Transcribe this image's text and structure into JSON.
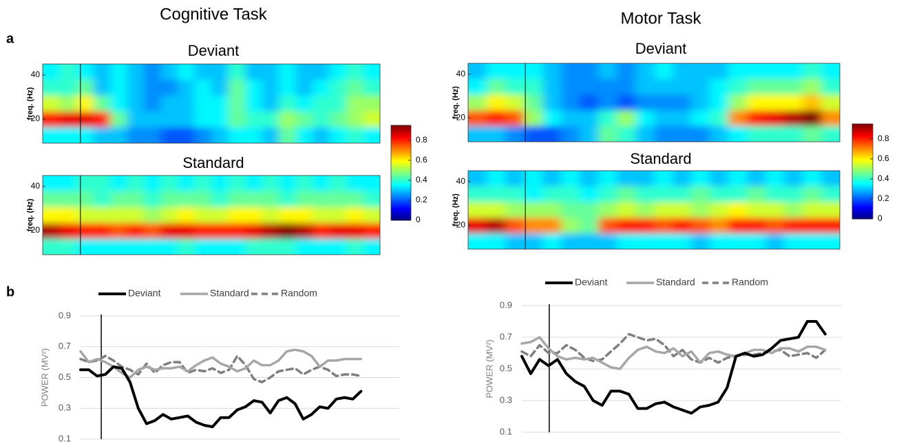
{
  "columns": [
    "Cognitive Task",
    "Motor Task"
  ],
  "panel_labels": [
    "a",
    "b"
  ],
  "chart_data": [
    {
      "type": "heatmap",
      "title": "Deviant",
      "ylabel": "freq. (Hz)",
      "ylim": [
        9,
        45
      ],
      "yticks": [
        20,
        40
      ],
      "colormap": "jet",
      "clim": [
        0,
        0.95
      ],
      "colorbar": true,
      "cticks": [
        0,
        0.2,
        0.4,
        0.6,
        0.8
      ],
      "values": [
        [
          0.35,
          0.4,
          0.35,
          0.3,
          0.35,
          0.3,
          0.25,
          0.3,
          0.35,
          0.3,
          0.3,
          0.4,
          0.3,
          0.3,
          0.35,
          0.3,
          0.3,
          0.35,
          0.4,
          0.35
        ],
        [
          0.4,
          0.4,
          0.45,
          0.3,
          0.35,
          0.3,
          0.25,
          0.25,
          0.3,
          0.35,
          0.3,
          0.45,
          0.35,
          0.3,
          0.35,
          0.3,
          0.35,
          0.4,
          0.45,
          0.4
        ],
        [
          0.55,
          0.5,
          0.6,
          0.45,
          0.35,
          0.3,
          0.25,
          0.3,
          0.3,
          0.35,
          0.35,
          0.45,
          0.35,
          0.3,
          0.4,
          0.35,
          0.4,
          0.4,
          0.5,
          0.5
        ],
        [
          0.8,
          0.85,
          0.85,
          0.8,
          0.45,
          0.3,
          0.3,
          0.3,
          0.3,
          0.35,
          0.35,
          0.45,
          0.4,
          0.4,
          0.5,
          0.45,
          0.4,
          0.45,
          0.5,
          0.55
        ],
        [
          0.35,
          0.35,
          0.35,
          0.3,
          0.3,
          0.25,
          0.25,
          0.2,
          0.2,
          0.25,
          0.3,
          0.35,
          0.35,
          0.3,
          0.45,
          0.35,
          0.3,
          0.35,
          0.4,
          0.35
        ]
      ]
    },
    {
      "type": "heatmap",
      "title": "Standard",
      "ylabel": "freq. (Hz)",
      "ylim": [
        9,
        45
      ],
      "yticks": [
        20,
        40
      ],
      "colormap": "jet",
      "clim": [
        0,
        0.95
      ],
      "values": [
        [
          0.35,
          0.35,
          0.4,
          0.4,
          0.35,
          0.4,
          0.35,
          0.4,
          0.35,
          0.4,
          0.35,
          0.4,
          0.35,
          0.4,
          0.35,
          0.4,
          0.35,
          0.4,
          0.35,
          0.35
        ],
        [
          0.45,
          0.45,
          0.45,
          0.4,
          0.45,
          0.45,
          0.4,
          0.45,
          0.45,
          0.45,
          0.4,
          0.45,
          0.45,
          0.45,
          0.4,
          0.45,
          0.45,
          0.45,
          0.45,
          0.4
        ],
        [
          0.6,
          0.6,
          0.55,
          0.55,
          0.55,
          0.55,
          0.5,
          0.55,
          0.6,
          0.55,
          0.55,
          0.6,
          0.6,
          0.55,
          0.6,
          0.6,
          0.55,
          0.55,
          0.6,
          0.55
        ],
        [
          0.9,
          0.85,
          0.8,
          0.8,
          0.75,
          0.8,
          0.75,
          0.85,
          0.85,
          0.8,
          0.8,
          0.8,
          0.85,
          0.9,
          0.95,
          0.9,
          0.8,
          0.85,
          0.85,
          0.8
        ],
        [
          0.4,
          0.4,
          0.35,
          0.35,
          0.35,
          0.35,
          0.35,
          0.35,
          0.4,
          0.35,
          0.35,
          0.35,
          0.4,
          0.4,
          0.4,
          0.35,
          0.35,
          0.35,
          0.4,
          0.35
        ]
      ]
    },
    {
      "type": "heatmap",
      "title": "Deviant",
      "ylabel": "freq. (Hz)",
      "ylim": [
        9,
        45
      ],
      "yticks": [
        20,
        40
      ],
      "colormap": "jet",
      "clim": [
        0,
        0.95
      ],
      "colorbar": true,
      "cticks": [
        0,
        0.2,
        0.4,
        0.6,
        0.8
      ],
      "values": [
        [
          0.3,
          0.35,
          0.35,
          0.35,
          0.3,
          0.25,
          0.25,
          0.3,
          0.25,
          0.3,
          0.35,
          0.3,
          0.3,
          0.3,
          0.35,
          0.35,
          0.35,
          0.35,
          0.4,
          0.35
        ],
        [
          0.35,
          0.45,
          0.4,
          0.4,
          0.3,
          0.25,
          0.25,
          0.25,
          0.25,
          0.3,
          0.3,
          0.3,
          0.3,
          0.35,
          0.4,
          0.45,
          0.45,
          0.45,
          0.5,
          0.4
        ],
        [
          0.5,
          0.6,
          0.55,
          0.45,
          0.3,
          0.25,
          0.2,
          0.25,
          0.2,
          0.25,
          0.25,
          0.25,
          0.3,
          0.35,
          0.5,
          0.6,
          0.6,
          0.6,
          0.65,
          0.55
        ],
        [
          0.75,
          0.8,
          0.75,
          0.5,
          0.35,
          0.3,
          0.3,
          0.4,
          0.5,
          0.35,
          0.3,
          0.3,
          0.35,
          0.4,
          0.7,
          0.8,
          0.85,
          0.9,
          0.95,
          0.7
        ],
        [
          0.3,
          0.3,
          0.25,
          0.2,
          0.2,
          0.25,
          0.3,
          0.45,
          0.4,
          0.3,
          0.25,
          0.25,
          0.25,
          0.3,
          0.35,
          0.4,
          0.4,
          0.4,
          0.45,
          0.4
        ]
      ]
    },
    {
      "type": "heatmap",
      "title": "Standard",
      "ylabel": "freq. (Hz)",
      "ylim": [
        9,
        45
      ],
      "yticks": [
        20,
        40
      ],
      "colormap": "jet",
      "clim": [
        0,
        0.95
      ],
      "values": [
        [
          0.3,
          0.35,
          0.3,
          0.35,
          0.3,
          0.35,
          0.3,
          0.35,
          0.3,
          0.3,
          0.35,
          0.3,
          0.35,
          0.3,
          0.35,
          0.3,
          0.35,
          0.3,
          0.35,
          0.3
        ],
        [
          0.4,
          0.4,
          0.4,
          0.35,
          0.4,
          0.4,
          0.35,
          0.4,
          0.45,
          0.4,
          0.4,
          0.4,
          0.45,
          0.4,
          0.4,
          0.45,
          0.4,
          0.4,
          0.45,
          0.4
        ],
        [
          0.55,
          0.55,
          0.5,
          0.5,
          0.5,
          0.45,
          0.45,
          0.5,
          0.55,
          0.5,
          0.55,
          0.55,
          0.5,
          0.55,
          0.6,
          0.55,
          0.55,
          0.5,
          0.55,
          0.55
        ],
        [
          0.85,
          0.9,
          0.75,
          0.7,
          0.7,
          0.5,
          0.45,
          0.75,
          0.8,
          0.8,
          0.75,
          0.8,
          0.75,
          0.7,
          0.8,
          0.8,
          0.75,
          0.8,
          0.8,
          0.8
        ],
        [
          0.35,
          0.35,
          0.3,
          0.3,
          0.35,
          0.3,
          0.3,
          0.3,
          0.35,
          0.35,
          0.35,
          0.35,
          0.3,
          0.35,
          0.35,
          0.35,
          0.3,
          0.35,
          0.35,
          0.35
        ]
      ]
    },
    {
      "type": "line",
      "ylabel": "POWER (MV²)",
      "ylim": [
        0.1,
        0.9
      ],
      "yticks": [
        0.1,
        0.3,
        0.5,
        0.7,
        0.9
      ],
      "grid": true,
      "series": [
        {
          "name": "Deviant",
          "color": "#000000",
          "dash": "solid",
          "values": [
            0.55,
            0.55,
            0.51,
            0.52,
            0.57,
            0.56,
            0.47,
            0.3,
            0.2,
            0.22,
            0.26,
            0.23,
            0.24,
            0.25,
            0.21,
            0.19,
            0.18,
            0.24,
            0.24,
            0.29,
            0.31,
            0.35,
            0.34,
            0.27,
            0.35,
            0.37,
            0.33,
            0.23,
            0.26,
            0.31,
            0.3,
            0.36,
            0.37,
            0.36,
            0.41
          ]
        },
        {
          "name": "Standard",
          "color": "#a6a6a6",
          "dash": "solid",
          "values": [
            0.67,
            0.6,
            0.62,
            0.6,
            0.57,
            0.53,
            0.5,
            0.55,
            0.57,
            0.55,
            0.56,
            0.56,
            0.57,
            0.54,
            0.58,
            0.61,
            0.63,
            0.59,
            0.57,
            0.54,
            0.56,
            0.61,
            0.58,
            0.58,
            0.61,
            0.67,
            0.68,
            0.67,
            0.64,
            0.57,
            0.61,
            0.61,
            0.62,
            0.62,
            0.62
          ]
        },
        {
          "name": "Random",
          "color": "#7f7f7f",
          "dash": "dashed",
          "values": [
            0.62,
            0.6,
            0.61,
            0.64,
            0.61,
            0.57,
            0.55,
            0.52,
            0.59,
            0.53,
            0.58,
            0.6,
            0.6,
            0.53,
            0.55,
            0.54,
            0.56,
            0.53,
            0.55,
            0.64,
            0.58,
            0.49,
            0.47,
            0.5,
            0.54,
            0.55,
            0.56,
            0.52,
            0.55,
            0.57,
            0.55,
            0.51,
            0.52,
            0.52,
            0.51
          ]
        }
      ]
    },
    {
      "type": "line",
      "ylabel": "POWER (MV²)",
      "ylim": [
        0.1,
        0.9
      ],
      "yticks": [
        0.1,
        0.3,
        0.5,
        0.7,
        0.9
      ],
      "grid": true,
      "series": [
        {
          "name": "Deviant",
          "color": "#000000",
          "dash": "solid",
          "values": [
            0.58,
            0.47,
            0.56,
            0.52,
            0.56,
            0.47,
            0.42,
            0.39,
            0.3,
            0.27,
            0.36,
            0.36,
            0.34,
            0.25,
            0.25,
            0.28,
            0.29,
            0.26,
            0.24,
            0.22,
            0.26,
            0.27,
            0.29,
            0.38,
            0.58,
            0.6,
            0.58,
            0.59,
            0.63,
            0.68,
            0.69,
            0.7,
            0.8,
            0.8,
            0.72
          ]
        },
        {
          "name": "Standard",
          "color": "#a6a6a6",
          "dash": "solid",
          "values": [
            0.66,
            0.67,
            0.7,
            0.63,
            0.58,
            0.56,
            0.57,
            0.56,
            0.57,
            0.54,
            0.51,
            0.5,
            0.57,
            0.62,
            0.64,
            0.61,
            0.6,
            0.63,
            0.58,
            0.61,
            0.54,
            0.6,
            0.61,
            0.59,
            0.58,
            0.6,
            0.62,
            0.62,
            0.6,
            0.63,
            0.63,
            0.61,
            0.64,
            0.64,
            0.62
          ]
        },
        {
          "name": "Random",
          "color": "#7f7f7f",
          "dash": "dashed",
          "values": [
            0.61,
            0.58,
            0.65,
            0.6,
            0.6,
            0.65,
            0.62,
            0.57,
            0.55,
            0.56,
            0.61,
            0.66,
            0.72,
            0.7,
            0.68,
            0.69,
            0.65,
            0.58,
            0.62,
            0.56,
            0.54,
            0.57,
            0.54,
            0.57,
            0.58,
            0.59,
            0.59,
            0.6,
            0.61,
            0.62,
            0.58,
            0.59,
            0.6,
            0.57,
            0.62
          ]
        }
      ]
    }
  ]
}
